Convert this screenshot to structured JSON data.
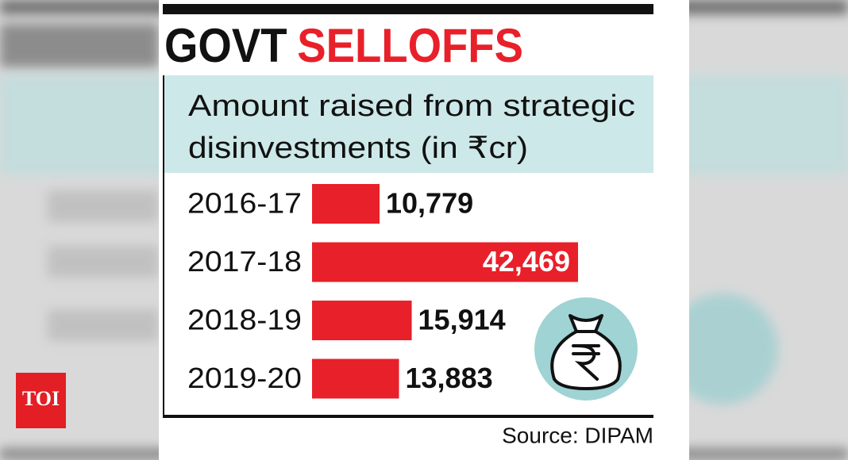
{
  "brand": "TOI",
  "chart_data": {
    "type": "bar",
    "orientation": "horizontal",
    "title": "GOVT",
    "title_highlight": "SELLOFFS",
    "subtitle": [
      "Amount raised from strategic",
      "disinvestments (in ₹cr)"
    ],
    "categories": [
      "2016-17",
      "2017-18",
      "2018-19",
      "2019-20"
    ],
    "values": [
      10779,
      42469,
      15914,
      13883
    ],
    "value_labels": [
      "10,779",
      "42,469",
      "15,914",
      "13,883"
    ],
    "color": "#e8202a",
    "source": "Source: DIPAM"
  }
}
